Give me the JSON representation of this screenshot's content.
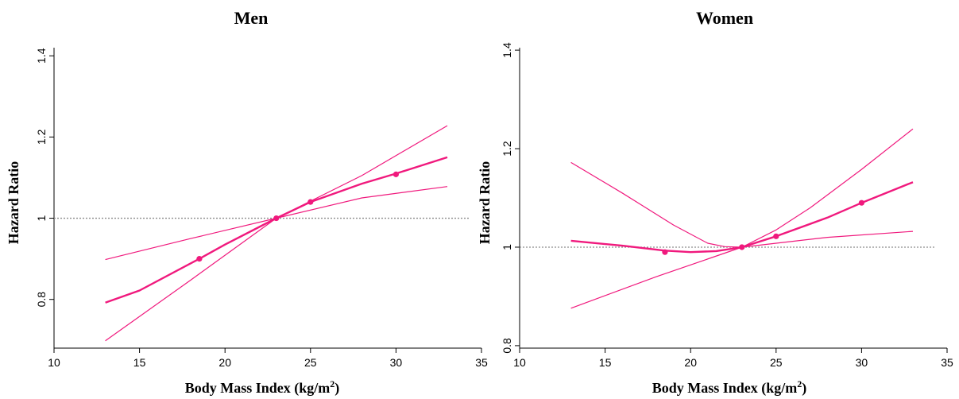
{
  "chart_data": [
    {
      "type": "line",
      "title": "Men",
      "xlabel": "Body Mass Index (kg/m",
      "xlabel_sup": "2",
      "xlabel_end": ")",
      "ylabel": "Hazard Ratio",
      "xlim": [
        10,
        35
      ],
      "ylim": [
        0.68,
        1.42
      ],
      "xticks": [
        "10",
        "15",
        "20",
        "25",
        "30",
        "35"
      ],
      "yticks": [
        "0.8",
        "1",
        "1.2",
        "1.4"
      ],
      "reference_line": 1,
      "colors": {
        "curve": "#f0197d",
        "reference": "#8c8c8c"
      },
      "series": [
        {
          "role": "estimate",
          "x": [
            13,
            15,
            18.5,
            20,
            23,
            25,
            28,
            30,
            33
          ],
          "y": [
            0.792,
            0.822,
            0.9,
            0.935,
            1.0,
            1.04,
            1.085,
            1.11,
            1.15
          ]
        },
        {
          "role": "upper",
          "x": [
            13,
            18,
            23,
            28,
            33
          ],
          "y": [
            0.898,
            0.95,
            1.0,
            1.105,
            1.228
          ]
        },
        {
          "role": "lower",
          "x": [
            13,
            18,
            23,
            28,
            33
          ],
          "y": [
            0.698,
            0.848,
            1.0,
            1.05,
            1.078
          ]
        },
        {
          "role": "points",
          "x": [
            18.5,
            23,
            25,
            30
          ],
          "y": [
            0.9,
            1.0,
            1.04,
            1.108
          ]
        }
      ]
    },
    {
      "type": "line",
      "title": "Women",
      "xlabel": "Body Mass Index (kg/m",
      "xlabel_sup": "2",
      "xlabel_end": ")",
      "ylabel": "Hazard Ratio",
      "xlim": [
        10,
        35
      ],
      "ylim": [
        0.795,
        1.405
      ],
      "xticks": [
        "10",
        "15",
        "20",
        "25",
        "30",
        "35"
      ],
      "yticks": [
        "0.8",
        "1",
        "1.2",
        "1.4"
      ],
      "reference_line": 1,
      "colors": {
        "curve": "#f0197d",
        "reference": "#8c8c8c"
      },
      "series": [
        {
          "role": "estimate",
          "x": [
            13,
            16,
            18.5,
            20,
            21.5,
            23,
            25,
            28,
            30,
            33
          ],
          "y": [
            1.013,
            1.003,
            0.993,
            0.99,
            0.992,
            1.0,
            1.022,
            1.06,
            1.09,
            1.132
          ]
        },
        {
          "role": "upper",
          "x": [
            13,
            16,
            19,
            21,
            22,
            23,
            25,
            27,
            30,
            33
          ],
          "y": [
            1.172,
            1.11,
            1.045,
            1.008,
            1.001,
            1.0,
            1.035,
            1.08,
            1.158,
            1.24
          ]
        },
        {
          "role": "lower",
          "x": [
            13,
            18,
            23,
            28,
            33
          ],
          "y": [
            0.876,
            0.94,
            1.0,
            1.02,
            1.032
          ]
        },
        {
          "role": "points",
          "x": [
            18.5,
            23,
            25,
            30
          ],
          "y": [
            0.99,
            1.0,
            1.022,
            1.09
          ]
        }
      ]
    }
  ]
}
